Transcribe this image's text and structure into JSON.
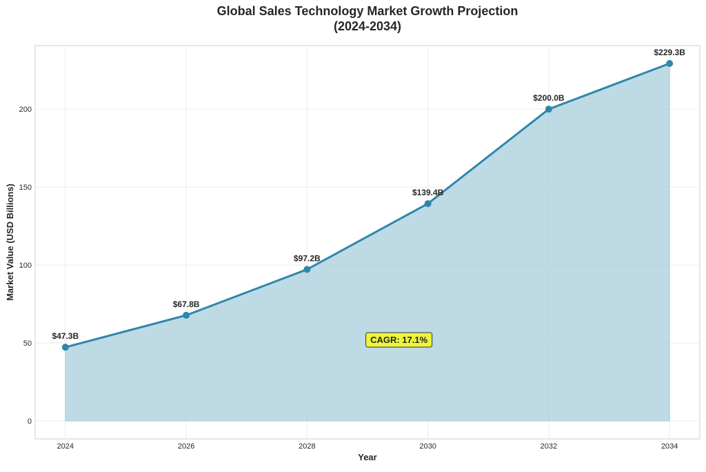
{
  "chart_data": {
    "type": "area",
    "title": "Global Sales Technology Market Growth Projection",
    "subtitle": "(2024-2034)",
    "xlabel": "Year",
    "ylabel": "Market Value (USD Billions)",
    "x": [
      2024,
      2026,
      2028,
      2030,
      2032,
      2034
    ],
    "series": [
      {
        "values": [
          47.3,
          67.8,
          97.2,
          139.4,
          200.0,
          229.3
        ],
        "data_labels": [
          "$47.3B",
          "$67.8B",
          "$97.2B",
          "$139.4B",
          "$200.0B",
          "$229.3B"
        ]
      }
    ],
    "xticks": [
      "2024",
      "2026",
      "2028",
      "2030",
      "2032",
      "2034"
    ],
    "yticks": [
      "0",
      "50",
      "100",
      "150",
      "200"
    ],
    "ylim": [
      -11.5,
      240.8
    ],
    "xlim": [
      2023.5,
      2034.5
    ],
    "grid": true,
    "annotation": {
      "text": "CAGR: 17.1%",
      "x": 2030,
      "y": 50
    },
    "colors": {
      "line": "#2e86ab",
      "fill": "#a8cddb",
      "annotation_bg": "#eef53a",
      "grid": "#ebebeb",
      "axes_border": "#cccccc"
    }
  }
}
